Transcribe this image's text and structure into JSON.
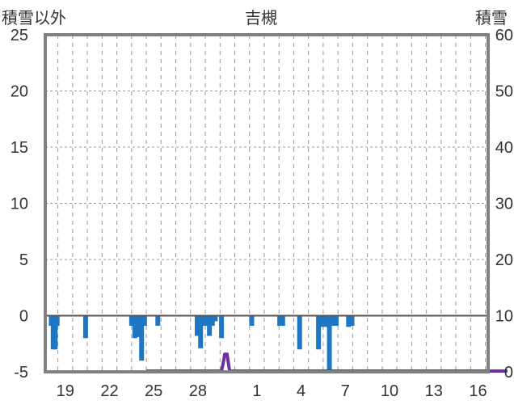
{
  "header": {
    "left_axis_label": "積雪以外",
    "title": "吉槻",
    "right_axis_label": "積雪"
  },
  "chart_data": {
    "type": "bar",
    "title": "吉槻",
    "left_axis": {
      "label": "積雪以外",
      "min": -5,
      "max": 25,
      "ticks": [
        25,
        20,
        15,
        10,
        5,
        0,
        -5
      ]
    },
    "right_axis": {
      "label": "積雪",
      "min": 0,
      "max": 60,
      "ticks": [
        60,
        50,
        40,
        30,
        20,
        10,
        0
      ]
    },
    "x_axis": {
      "start_day": 18,
      "days_in_start_month": 31,
      "num_days": 31,
      "tick_labels": [
        "19",
        "22",
        "25",
        "28",
        "1",
        "4",
        "7",
        "10",
        "13",
        "16"
      ]
    },
    "grid": {
      "horizontal": "dashed",
      "vertical": "dashed-daily"
    },
    "colors": {
      "bars": "#1f77c4",
      "snow": "#7030a0",
      "zero_line": "#555555",
      "frame": "#808080"
    },
    "series": [
      {
        "axis": "left",
        "style": "bars-below-zero",
        "points": [
          {
            "day": 0.05,
            "value": -0.9
          },
          {
            "day": 0.18,
            "value": -3.0
          },
          {
            "day": 0.32,
            "value": -3.0
          },
          {
            "day": 0.45,
            "value": -0.9
          },
          {
            "day": 2.38,
            "value": -2.0
          },
          {
            "day": 5.5,
            "value": -0.9
          },
          {
            "day": 5.72,
            "value": -2.0
          },
          {
            "day": 5.95,
            "value": -1.9
          },
          {
            "day": 6.18,
            "value": -4.0
          },
          {
            "day": 6.38,
            "value": -0.9
          },
          {
            "day": 7.28,
            "value": -0.9
          },
          {
            "day": 9.95,
            "value": -1.8
          },
          {
            "day": 10.18,
            "value": -2.9
          },
          {
            "day": 10.38,
            "value": -0.9
          },
          {
            "day": 10.58,
            "value": -0.9
          },
          {
            "day": 10.78,
            "value": -1.8
          },
          {
            "day": 10.98,
            "value": -0.9
          },
          {
            "day": 11.18,
            "value": -0.5
          },
          {
            "day": 11.6,
            "value": -2.0
          },
          {
            "day": 13.65,
            "value": -0.9
          },
          {
            "day": 15.55,
            "value": -0.9
          },
          {
            "day": 15.75,
            "value": -0.9
          },
          {
            "day": 16.9,
            "value": -3.0
          },
          {
            "day": 18.18,
            "value": -3.0
          },
          {
            "day": 18.38,
            "value": -1.0
          },
          {
            "day": 18.62,
            "value": -1.0
          },
          {
            "day": 18.92,
            "value": -4.9
          },
          {
            "day": 19.15,
            "value": -0.9
          },
          {
            "day": 19.38,
            "value": -0.9
          },
          {
            "day": 20.22,
            "value": -1.0
          },
          {
            "day": 20.45,
            "value": -0.9
          }
        ]
      },
      {
        "axis": "right",
        "style": "line",
        "points": [
          {
            "day": 6.5,
            "value": 0
          },
          {
            "day": 11.6,
            "value": 0
          },
          {
            "day": 11.72,
            "value": 1.5
          },
          {
            "day": 11.82,
            "value": 3.0
          },
          {
            "day": 11.98,
            "value": 3.0
          },
          {
            "day": 12.06,
            "value": 1.5
          },
          {
            "day": 12.15,
            "value": 0
          },
          {
            "day": 31.0,
            "value": 0
          }
        ]
      }
    ]
  }
}
